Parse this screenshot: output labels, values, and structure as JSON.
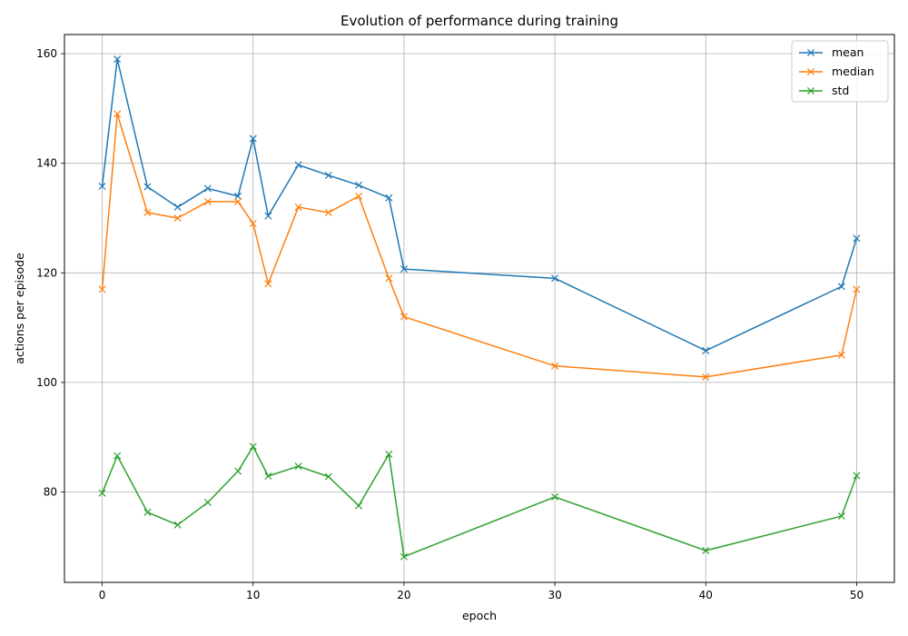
{
  "chart_data": {
    "type": "line",
    "title": "Evolution of performance during training",
    "xlabel": "epoch",
    "ylabel": "actions per episode",
    "xlim": [
      -2.5,
      52.5
    ],
    "ylim": [
      63.5,
      163.5
    ],
    "x_ticks": [
      0,
      10,
      20,
      30,
      40,
      50
    ],
    "y_ticks": [
      80,
      100,
      120,
      140,
      160
    ],
    "grid": true,
    "legend_position": "top-right",
    "marker": "x",
    "x": [
      0,
      1,
      3,
      5,
      7,
      9,
      10,
      11,
      13,
      15,
      17,
      19,
      20,
      30,
      40,
      49,
      50
    ],
    "series": [
      {
        "name": "mean",
        "color": "#1f77b4",
        "values": [
          135.8,
          159.0,
          135.7,
          132.0,
          135.4,
          134.0,
          144.5,
          130.4,
          139.7,
          137.8,
          136.0,
          133.7,
          120.7,
          119.0,
          105.8,
          117.5,
          126.3
        ]
      },
      {
        "name": "median",
        "color": "#ff7f0e",
        "values": [
          117,
          149,
          131,
          130,
          133,
          133,
          129,
          118,
          132,
          131,
          134,
          119,
          112,
          103,
          101,
          105,
          117
        ]
      },
      {
        "name": "std",
        "color": "#2ca02c",
        "values": [
          79.8,
          86.6,
          76.3,
          74.0,
          78.1,
          83.8,
          88.3,
          82.9,
          84.7,
          82.8,
          77.5,
          86.9,
          68.2,
          79.1,
          69.3,
          75.6,
          83.0
        ]
      }
    ]
  }
}
